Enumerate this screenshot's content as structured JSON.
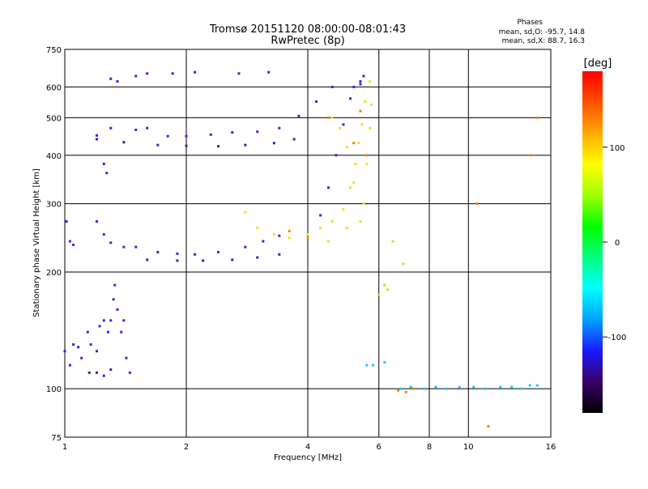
{
  "chart_data": {
    "type": "scatter",
    "title": "Tromsø 20151120 08:00:00-08:01:43",
    "subtitle": "RwPretec (8p)",
    "xlabel": "Frequency [MHz]",
    "ylabel": "Stationary phase Virtual Height [km]",
    "x_scale": "log",
    "y_scale": "log",
    "xlim": [
      1,
      16
    ],
    "ylim": [
      75,
      750
    ],
    "x_ticks": [
      1,
      2,
      4,
      6,
      8,
      10,
      16
    ],
    "y_ticks": [
      75,
      100,
      200,
      300,
      400,
      500,
      600,
      750
    ],
    "grid": true,
    "stats": {
      "heading": "Phases",
      "line_o": "mean, sd,O: -95.7, 14.8",
      "line_x": "mean, sd,X:  88.7, 16.3"
    },
    "colorbar": {
      "label": "[deg]",
      "range": [
        -180,
        180
      ],
      "ticks": [
        100,
        0,
        -100
      ],
      "tick_labels": [
        "100",
        "0",
        "-100"
      ],
      "colors": [
        "#000000",
        "#3a0066",
        "#1a1aff",
        "#00a0ff",
        "#00ffff",
        "#00ff80",
        "#00ff00",
        "#a0ff00",
        "#ffff00",
        "#ffaa00",
        "#ff5000",
        "#ff0000"
      ]
    },
    "series": [
      {
        "phase": -100,
        "color": "#2a2ae8",
        "points": [
          [
            1.2,
            450
          ],
          [
            1.3,
            470
          ],
          [
            1.5,
            465
          ],
          [
            1.6,
            470
          ],
          [
            1.8,
            448
          ],
          [
            2.0,
            448
          ],
          [
            2.3,
            452
          ],
          [
            2.6,
            458
          ],
          [
            3.0,
            460
          ],
          [
            3.4,
            470
          ],
          [
            3.8,
            505
          ],
          [
            4.2,
            550
          ],
          [
            4.6,
            600
          ],
          [
            1.2,
            270
          ],
          [
            1.25,
            250
          ],
          [
            1.3,
            238
          ],
          [
            1.4,
            232
          ],
          [
            1.5,
            232
          ],
          [
            1.7,
            225
          ],
          [
            1.9,
            223
          ],
          [
            2.1,
            222
          ],
          [
            2.4,
            225
          ],
          [
            2.8,
            232
          ],
          [
            3.1,
            240
          ],
          [
            3.4,
            248
          ],
          [
            4.3,
            280
          ],
          [
            4.5,
            330
          ],
          [
            4.7,
            400
          ],
          [
            4.9,
            480
          ],
          [
            5.1,
            560
          ],
          [
            5.4,
            620
          ],
          [
            1.01,
            270
          ],
          [
            1.03,
            240
          ],
          [
            1.05,
            235
          ],
          [
            1.0,
            125
          ],
          [
            1.03,
            115
          ],
          [
            1.05,
            130
          ],
          [
            1.08,
            128
          ],
          [
            1.1,
            120
          ],
          [
            1.14,
            140
          ],
          [
            1.16,
            130
          ],
          [
            1.2,
            125
          ],
          [
            1.22,
            145
          ],
          [
            1.25,
            150
          ],
          [
            1.28,
            140
          ],
          [
            1.3,
            150
          ],
          [
            1.32,
            170
          ],
          [
            1.33,
            185
          ],
          [
            1.35,
            160
          ],
          [
            1.38,
            140
          ],
          [
            1.4,
            150
          ],
          [
            1.42,
            120
          ],
          [
            1.45,
            110
          ],
          [
            1.25,
            380
          ],
          [
            1.27,
            360
          ],
          [
            1.3,
            630
          ],
          [
            1.35,
            620
          ],
          [
            1.5,
            640
          ],
          [
            1.6,
            650
          ],
          [
            1.85,
            650
          ],
          [
            2.1,
            655
          ],
          [
            2.7,
            650
          ],
          [
            3.2,
            655
          ],
          [
            5.2,
            600
          ],
          [
            5.4,
            610
          ],
          [
            5.5,
            640
          ]
        ]
      },
      {
        "phase": -130,
        "color": "#4a1aa8",
        "points": [
          [
            1.2,
            440
          ],
          [
            1.4,
            432
          ],
          [
            1.7,
            425
          ],
          [
            2.0,
            423
          ],
          [
            2.4,
            422
          ],
          [
            2.8,
            425
          ],
          [
            3.3,
            430
          ],
          [
            3.7,
            440
          ],
          [
            1.6,
            215
          ],
          [
            1.9,
            214
          ],
          [
            2.2,
            214
          ],
          [
            2.6,
            215
          ],
          [
            3.0,
            218
          ],
          [
            3.4,
            222
          ],
          [
            1.15,
            110
          ],
          [
            1.2,
            110
          ],
          [
            1.25,
            108
          ],
          [
            1.3,
            112
          ]
        ]
      },
      {
        "phase": 100,
        "color": "#e6e619",
        "points": [
          [
            2.8,
            285
          ],
          [
            3.0,
            260
          ],
          [
            3.3,
            250
          ],
          [
            3.6,
            245
          ],
          [
            4.0,
            250
          ],
          [
            4.3,
            260
          ],
          [
            4.6,
            270
          ],
          [
            4.9,
            290
          ],
          [
            5.1,
            330
          ],
          [
            5.25,
            380
          ],
          [
            5.35,
            430
          ],
          [
            5.45,
            480
          ],
          [
            5.55,
            550
          ],
          [
            5.7,
            620
          ],
          [
            4.6,
            500
          ],
          [
            4.8,
            470
          ],
          [
            5.0,
            420
          ],
          [
            5.2,
            340
          ],
          [
            5.4,
            270
          ],
          [
            4.5,
            240
          ],
          [
            5.0,
            260
          ],
          [
            5.5,
            300
          ],
          [
            5.6,
            380
          ],
          [
            5.7,
            470
          ],
          [
            5.75,
            540
          ]
        ]
      },
      {
        "phase": 140,
        "color": "#ff8000",
        "points": [
          [
            3.6,
            255
          ],
          [
            4.0,
            245
          ],
          [
            5.2,
            430
          ],
          [
            5.4,
            520
          ],
          [
            4.5,
            500
          ],
          [
            5.6,
            400
          ],
          [
            6.7,
            99
          ],
          [
            7.0,
            98
          ],
          [
            7.3,
            100
          ],
          [
            10.5,
            300
          ],
          [
            11.2,
            80
          ],
          [
            14.3,
            400
          ],
          [
            14.8,
            500
          ]
        ]
      },
      {
        "phase": -40,
        "color": "#19c8ff",
        "points": [
          [
            6.8,
            100
          ],
          [
            7.2,
            101
          ],
          [
            7.8,
            100
          ],
          [
            8.3,
            101
          ],
          [
            8.8,
            100
          ],
          [
            9.5,
            101
          ],
          [
            10.3,
            101
          ],
          [
            11.0,
            100
          ],
          [
            12.0,
            101
          ],
          [
            12.8,
            101
          ],
          [
            13.5,
            100
          ],
          [
            14.2,
            102
          ],
          [
            14.8,
            102
          ],
          [
            5.6,
            115
          ],
          [
            5.8,
            115
          ],
          [
            6.2,
            117
          ]
        ]
      },
      {
        "phase": 60,
        "color": "#bfe61a",
        "points": [
          [
            6.0,
            175
          ],
          [
            6.2,
            185
          ],
          [
            6.3,
            180
          ],
          [
            6.5,
            240
          ],
          [
            6.9,
            210
          ]
        ]
      }
    ]
  }
}
